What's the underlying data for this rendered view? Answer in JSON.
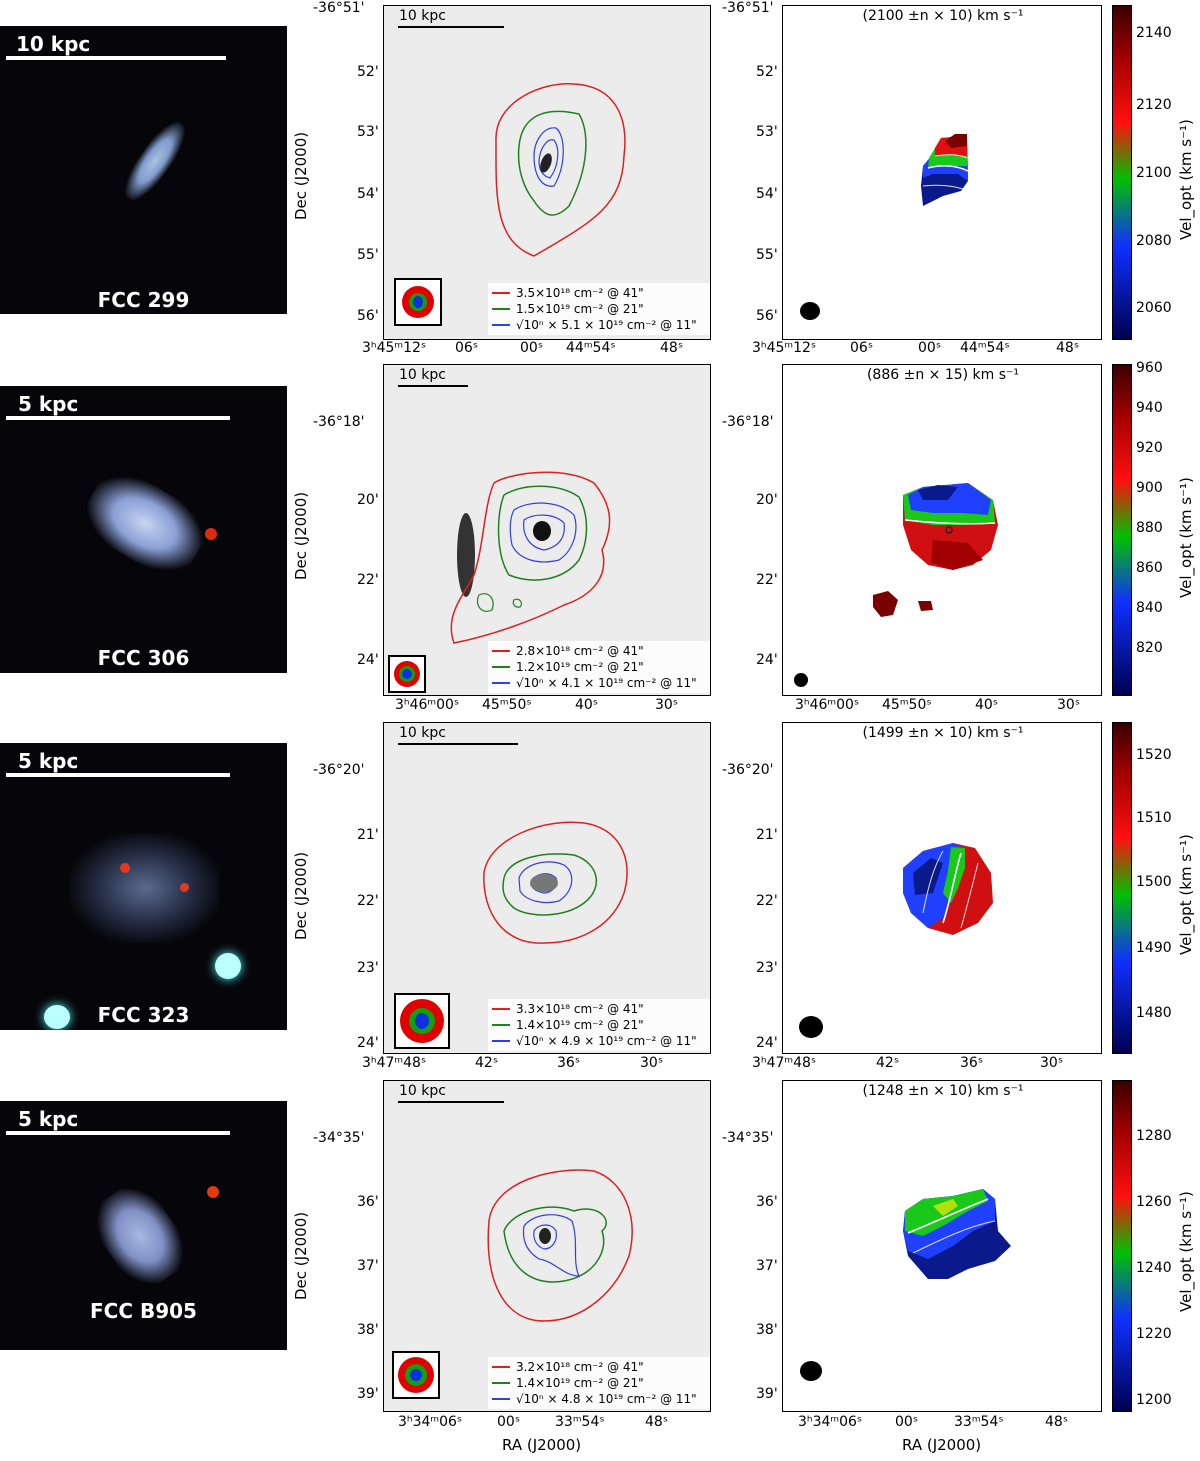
{
  "rows": [
    {
      "color_image": {
        "scale_label": "10 kpc",
        "galaxy": "FCC 299"
      },
      "hi_map": {
        "scale_label": "10 kpc",
        "legend": [
          "3.5×10¹⁸ cm⁻² @ 41\"",
          "1.5×10¹⁹ cm⁻² @ 21\"",
          "√10ⁿ × 5.1 × 10¹⁹ cm⁻² @ 11\""
        ],
        "dec_ticks": [
          "-36°51'",
          "52'",
          "53'",
          "54'",
          "55'",
          "56'"
        ],
        "ra_ticks": [
          "3ʰ45ᵐ12ˢ",
          "06ˢ",
          "00ˢ",
          "44ᵐ54ˢ",
          "48ˢ"
        ],
        "ylabel": "Dec (J2000)"
      },
      "vel_map": {
        "title": "(2100 ±n × 10) km s⁻¹",
        "dec_ticks": [
          "-36°51'",
          "52'",
          "53'",
          "54'",
          "55'",
          "56'"
        ],
        "ra_ticks": [
          "3ʰ45ᵐ12ˢ",
          "06ˢ",
          "00ˢ",
          "44ᵐ54ˢ",
          "48ˢ"
        ],
        "cbar_ticks": [
          "2140",
          "2120",
          "2100",
          "2080",
          "2060"
        ],
        "cbar_label": "Vel_opt (km s⁻¹)"
      }
    },
    {
      "color_image": {
        "scale_label": "5 kpc",
        "galaxy": "FCC 306"
      },
      "hi_map": {
        "scale_label": "10 kpc",
        "legend": [
          "2.8×10¹⁸ cm⁻² @ 41\"",
          "1.2×10¹⁹ cm⁻² @ 21\"",
          "√10ⁿ × 4.1 × 10¹⁹ cm⁻² @ 11\""
        ],
        "dec_ticks": [
          "-36°18'",
          "20'",
          "22'",
          "24'"
        ],
        "ra_ticks": [
          "3ʰ46ᵐ00ˢ",
          "45ᵐ50ˢ",
          "40ˢ",
          "30ˢ"
        ],
        "ylabel": "Dec (J2000)"
      },
      "vel_map": {
        "title": "(886 ±n × 15) km s⁻¹",
        "dec_ticks": [
          "-36°18'",
          "20'",
          "22'",
          "24'"
        ],
        "ra_ticks": [
          "3ʰ46ᵐ00ˢ",
          "45ᵐ50ˢ",
          "40ˢ",
          "30ˢ"
        ],
        "cbar_ticks": [
          "960",
          "940",
          "920",
          "900",
          "880",
          "860",
          "840",
          "820"
        ],
        "cbar_label": "Vel_opt (km s⁻¹)"
      }
    },
    {
      "color_image": {
        "scale_label": "5 kpc",
        "galaxy": "FCC 323"
      },
      "hi_map": {
        "scale_label": "10 kpc",
        "legend": [
          "3.3×10¹⁸ cm⁻² @ 41\"",
          "1.4×10¹⁹ cm⁻² @ 21\"",
          "√10ⁿ × 4.9 × 10¹⁹ cm⁻² @ 11\""
        ],
        "dec_ticks": [
          "-36°20'",
          "21'",
          "22'",
          "23'",
          "24'"
        ],
        "ra_ticks": [
          "3ʰ47ᵐ48ˢ",
          "42ˢ",
          "36ˢ",
          "30ˢ"
        ],
        "ylabel": "Dec (J2000)"
      },
      "vel_map": {
        "title": "(1499 ±n × 10) km s⁻¹",
        "dec_ticks": [
          "-36°20'",
          "21'",
          "22'",
          "23'",
          "24'"
        ],
        "ra_ticks": [
          "3ʰ47ᵐ48ˢ",
          "42ˢ",
          "36ˢ",
          "30ˢ"
        ],
        "cbar_ticks": [
          "1520",
          "1510",
          "1500",
          "1490",
          "1480"
        ],
        "cbar_label": "Vel_opt (km s⁻¹)"
      }
    },
    {
      "color_image": {
        "scale_label": "5 kpc",
        "galaxy": "FCC B905"
      },
      "hi_map": {
        "scale_label": "10 kpc",
        "legend": [
          "3.2×10¹⁸ cm⁻² @ 41\"",
          "1.4×10¹⁹ cm⁻² @ 21\"",
          "√10ⁿ × 4.8 × 10¹⁹ cm⁻² @ 11\""
        ],
        "dec_ticks": [
          "-34°35'",
          "36'",
          "37'",
          "38'",
          "39'"
        ],
        "ra_ticks": [
          "3ʰ34ᵐ06ˢ",
          "00ˢ",
          "33ᵐ54ˢ",
          "48ˢ"
        ],
        "ylabel": "Dec (J2000)",
        "xlabel": "RA (J2000)"
      },
      "vel_map": {
        "title": "(1248 ±n × 10) km s⁻¹",
        "dec_ticks": [
          "-34°35'",
          "36'",
          "37'",
          "38'",
          "39'"
        ],
        "ra_ticks": [
          "3ʰ34ᵐ06ˢ",
          "00ˢ",
          "33ᵐ54ˢ",
          "48ˢ"
        ],
        "cbar_ticks": [
          "1280",
          "1260",
          "1240",
          "1220",
          "1200"
        ],
        "cbar_label": "Vel_opt (km s⁻¹)",
        "xlabel": "RA (J2000)"
      }
    }
  ],
  "colors": {
    "contour_outer": "#e02020",
    "contour_mid": "#208020",
    "contour_inner": "#3040e0"
  }
}
